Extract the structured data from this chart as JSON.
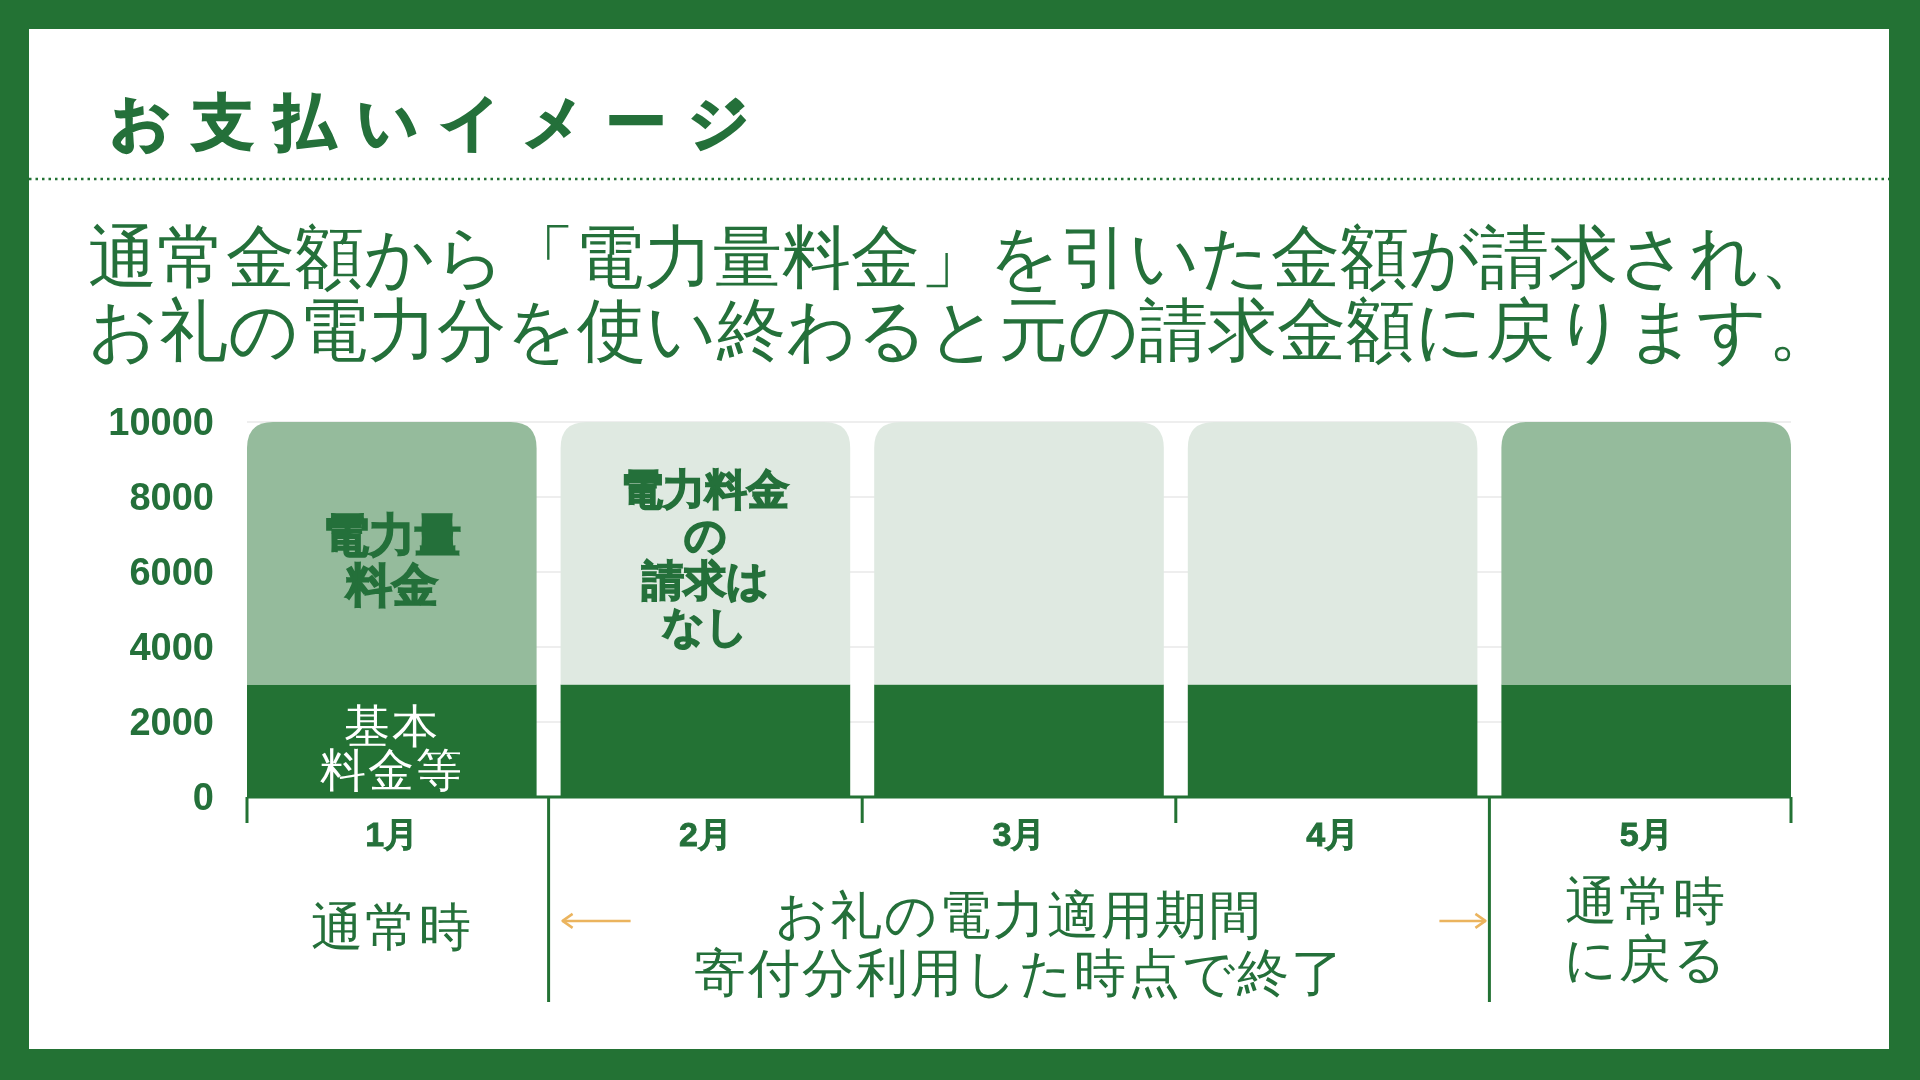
{
  "chart_data": {
    "type": "bar",
    "title": "お支払いイメージ",
    "subtitle": "通常金額から「電力量料金」を引いた金額が請求され、お礼の電力分を使い終わると元の請求金額に戻ります。",
    "categories": [
      "1月",
      "2月",
      "3月",
      "4月",
      "5月"
    ],
    "series": [
      {
        "color": "#237234",
        "values": [
          3000,
          3000,
          3000,
          3000,
          3000
        ]
      },
      {
        "colors": [
          "#95bb9c",
          "#dfe9e1",
          "#dfe9e1",
          "#dfe9e1",
          "#95bb9c"
        ],
        "values": [
          7000,
          7000,
          7000,
          7000,
          7000
        ]
      }
    ],
    "stacked": true,
    "ylim": [
      0,
      10000
    ],
    "yticks": [
      0,
      2000,
      4000,
      6000,
      8000,
      10000
    ],
    "grid": "y",
    "annotations": [
      "電力量料金",
      "基本料金等",
      "電力料金の請求はなし",
      "通常時",
      "お礼の電力適用期間寄付分利用した時点で終了",
      "通常時に戻る"
    ]
  }
}
